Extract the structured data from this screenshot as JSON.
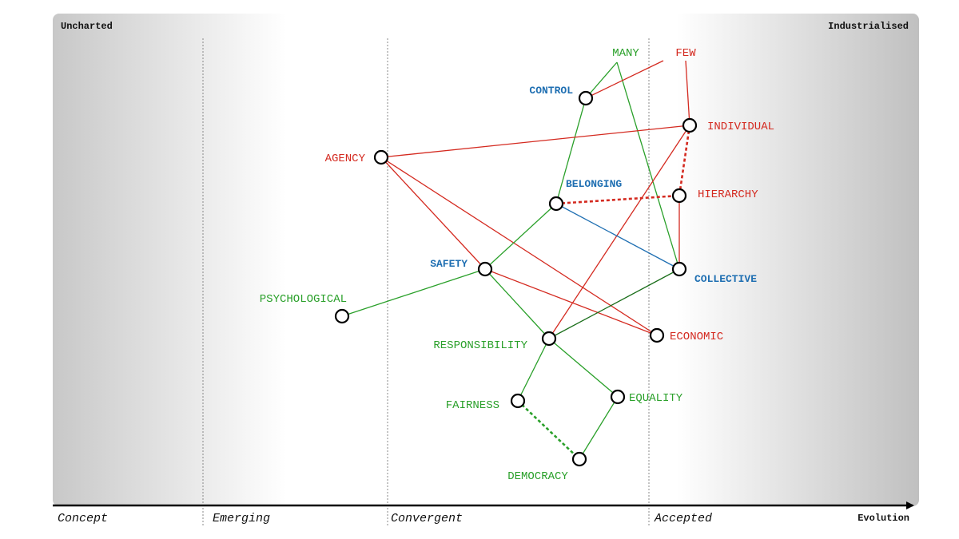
{
  "corners": {
    "left": "Uncharted",
    "right": "Industrialised"
  },
  "axis": {
    "title": "Evolution",
    "stages": [
      "Concept",
      "Emerging",
      "Convergent",
      "Accepted"
    ]
  },
  "colors": {
    "red": "#d42a20",
    "green": "#2aa02a",
    "blue": "#1f6fb2",
    "darkgreen": "#1a6e1a",
    "axis": "#000000",
    "divider": "#888888"
  },
  "nodes": [
    {
      "id": "many",
      "label": "MANY",
      "color": "green",
      "has_circle": false
    },
    {
      "id": "few",
      "label": "FEW",
      "color": "red",
      "has_circle": false
    },
    {
      "id": "control",
      "label": "CONTROL",
      "color": "blue",
      "has_circle": true
    },
    {
      "id": "individual",
      "label": "INDIVIDUAL",
      "color": "red",
      "has_circle": true
    },
    {
      "id": "agency",
      "label": "AGENCY",
      "color": "red",
      "has_circle": true
    },
    {
      "id": "belonging",
      "label": "BELONGING",
      "color": "blue",
      "has_circle": true
    },
    {
      "id": "hierarchy",
      "label": "HIERARCHY",
      "color": "red",
      "has_circle": true
    },
    {
      "id": "safety",
      "label": "SAFETY",
      "color": "blue",
      "has_circle": true
    },
    {
      "id": "collective",
      "label": "COLLECTIVE",
      "color": "blue",
      "has_circle": true
    },
    {
      "id": "psychological",
      "label": "PSYCHOLOGICAL",
      "color": "green",
      "has_circle": true
    },
    {
      "id": "responsibility",
      "label": "RESPONSIBILITY",
      "color": "green",
      "has_circle": true
    },
    {
      "id": "economic",
      "label": "ECONOMIC",
      "color": "red",
      "has_circle": true
    },
    {
      "id": "fairness",
      "label": "FAIRNESS",
      "color": "green",
      "has_circle": true
    },
    {
      "id": "equality",
      "label": "EQUALITY",
      "color": "green",
      "has_circle": true
    },
    {
      "id": "democracy",
      "label": "DEMOCRACY",
      "color": "green",
      "has_circle": true
    }
  ],
  "links": [
    {
      "from": "many",
      "to": "control",
      "color": "green",
      "style": "solid"
    },
    {
      "from": "many",
      "to": "collective",
      "color": "green",
      "style": "solid"
    },
    {
      "from": "few",
      "to": "control",
      "color": "red",
      "style": "solid"
    },
    {
      "from": "few",
      "to": "individual",
      "color": "red",
      "style": "solid"
    },
    {
      "from": "control",
      "to": "belonging",
      "color": "green",
      "style": "solid"
    },
    {
      "from": "agency",
      "to": "individual",
      "color": "red",
      "style": "solid"
    },
    {
      "from": "agency",
      "to": "safety",
      "color": "red",
      "style": "solid"
    },
    {
      "from": "agency",
      "to": "economic",
      "color": "red",
      "style": "solid"
    },
    {
      "from": "individual",
      "to": "hierarchy",
      "color": "red",
      "style": "dashed"
    },
    {
      "from": "individual",
      "to": "responsibility",
      "color": "red",
      "style": "solid"
    },
    {
      "from": "belonging",
      "to": "hierarchy",
      "color": "red",
      "style": "dashed"
    },
    {
      "from": "belonging",
      "to": "collective",
      "color": "blue",
      "style": "solid"
    },
    {
      "from": "belonging",
      "to": "safety",
      "color": "green",
      "style": "solid"
    },
    {
      "from": "hierarchy",
      "to": "collective",
      "color": "red",
      "style": "solid"
    },
    {
      "from": "safety",
      "to": "psychological",
      "color": "green",
      "style": "solid"
    },
    {
      "from": "safety",
      "to": "responsibility",
      "color": "green",
      "style": "solid"
    },
    {
      "from": "safety",
      "to": "economic",
      "color": "red",
      "style": "solid"
    },
    {
      "from": "collective",
      "to": "responsibility",
      "color": "darkgreen",
      "style": "solid"
    },
    {
      "from": "responsibility",
      "to": "fairness",
      "color": "green",
      "style": "solid"
    },
    {
      "from": "responsibility",
      "to": "equality",
      "color": "green",
      "style": "solid"
    },
    {
      "from": "fairness",
      "to": "democracy",
      "color": "green",
      "style": "dashed"
    },
    {
      "from": "equality",
      "to": "democracy",
      "color": "green",
      "style": "solid"
    }
  ]
}
